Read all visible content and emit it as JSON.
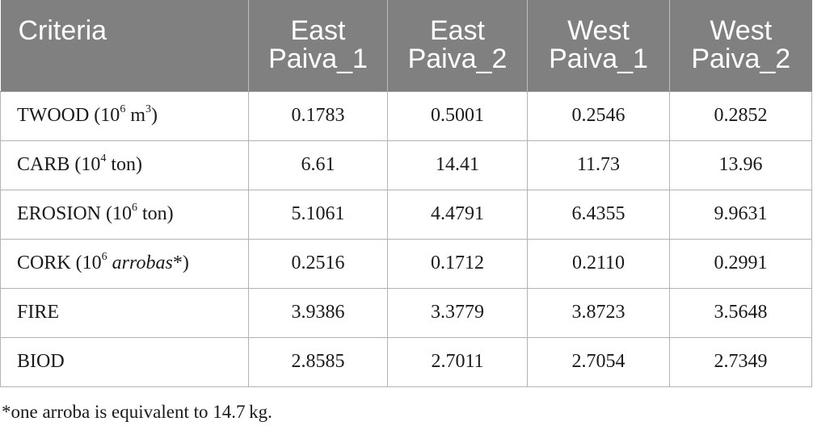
{
  "table": {
    "headers": [
      {
        "line1": "Criteria",
        "line2": ""
      },
      {
        "line1": "East",
        "line2": "Paiva_1"
      },
      {
        "line1": "East",
        "line2": "Paiva_2"
      },
      {
        "line1": "West",
        "line2": "Paiva_1"
      },
      {
        "line1": "West",
        "line2": "Paiva_2"
      }
    ],
    "rows": [
      {
        "label_pre": "TWOOD (10",
        "label_sup": "6",
        "label_mid": " m",
        "label_sup2": "3",
        "label_italic": "",
        "label_post": ")",
        "values": [
          "0.1783",
          "0.5001",
          "0.2546",
          "0.2852"
        ]
      },
      {
        "label_pre": "CARB (10",
        "label_sup": "4",
        "label_mid": " ton",
        "label_sup2": "",
        "label_italic": "",
        "label_post": ")",
        "values": [
          "6.61",
          "14.41",
          "11.73",
          "13.96"
        ]
      },
      {
        "label_pre": "EROSION (10",
        "label_sup": "6",
        "label_mid": " ton",
        "label_sup2": "",
        "label_italic": "",
        "label_post": ")",
        "values": [
          "5.1061",
          "4.4791",
          "6.4355",
          "9.9631"
        ]
      },
      {
        "label_pre": "CORK (10",
        "label_sup": "6",
        "label_mid": " ",
        "label_sup2": "",
        "label_italic": "arrobas",
        "label_post": "*)",
        "values": [
          "0.2516",
          "0.1712",
          "0.2110",
          "0.2991"
        ]
      },
      {
        "label_pre": "FIRE",
        "label_sup": "",
        "label_mid": "",
        "label_sup2": "",
        "label_italic": "",
        "label_post": "",
        "values": [
          "3.9386",
          "3.3779",
          "3.8723",
          "3.5648"
        ]
      },
      {
        "label_pre": "BIOD",
        "label_sup": "",
        "label_mid": "",
        "label_sup2": "",
        "label_italic": "",
        "label_post": "",
        "values": [
          "2.8585",
          "2.7011",
          "2.7054",
          "2.7349"
        ]
      }
    ]
  },
  "footnote": "*one arroba is equivalent to 14.7 kg."
}
